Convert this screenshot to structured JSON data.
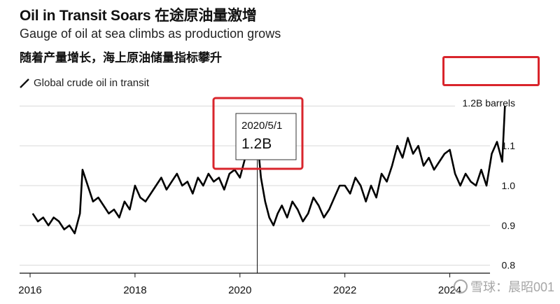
{
  "header": {
    "title": "Oil in Transit Soars 在途原油量激增",
    "subtitle": "Gauge of oil at sea climbs as production grows",
    "subtitle_zh": "随着产量增长，海上原油储量指标攀升"
  },
  "legend": {
    "series_label": "Global crude oil in transit"
  },
  "annotation": {
    "date": "2020/5/1",
    "value": "1.2B"
  },
  "watermark": {
    "text": "雪球：晨昭001"
  },
  "colors": {
    "line": "#000000",
    "highlight": "#d9252c",
    "grid": "#d9d9d9"
  },
  "chart_data": {
    "type": "line",
    "xlim": [
      2015.8,
      2025.3
    ],
    "ylim": [
      0.78,
      1.22
    ],
    "x_ticks": [
      2016,
      2018,
      2020,
      2022,
      2024
    ],
    "x_tick_labels": [
      "2016",
      "2018",
      "2020",
      "2022",
      "2024"
    ],
    "y_ticks": [
      0.8,
      0.9,
      1.0,
      1.1
    ],
    "y_tick_labels": [
      "0.8",
      "0.9",
      "1.0",
      "1.1"
    ],
    "top_label": "1.2B barrels",
    "grid": true,
    "series": [
      {
        "name": "Global crude oil in transit",
        "x": [
          2016.05,
          2016.15,
          2016.25,
          2016.35,
          2016.45,
          2016.55,
          2016.65,
          2016.75,
          2016.85,
          2016.95,
          2017.0,
          2017.1,
          2017.2,
          2017.3,
          2017.4,
          2017.5,
          2017.6,
          2017.7,
          2017.8,
          2017.9,
          2018.0,
          2018.1,
          2018.2,
          2018.3,
          2018.4,
          2018.5,
          2018.6,
          2018.7,
          2018.8,
          2018.9,
          2019.0,
          2019.1,
          2019.2,
          2019.3,
          2019.4,
          2019.5,
          2019.6,
          2019.7,
          2019.8,
          2019.9,
          2020.0,
          2020.08,
          2020.16,
          2020.24,
          2020.33,
          2020.4,
          2020.48,
          2020.56,
          2020.64,
          2020.72,
          2020.8,
          2020.9,
          2021.0,
          2021.1,
          2021.2,
          2021.3,
          2021.4,
          2021.5,
          2021.6,
          2021.7,
          2021.8,
          2021.9,
          2022.0,
          2022.1,
          2022.2,
          2022.3,
          2022.4,
          2022.5,
          2022.6,
          2022.7,
          2022.8,
          2022.9,
          2023.0,
          2023.1,
          2023.2,
          2023.3,
          2023.4,
          2023.5,
          2023.6,
          2023.7,
          2023.8,
          2023.9,
          2024.0,
          2024.1,
          2024.2,
          2024.3,
          2024.4,
          2024.5,
          2024.6,
          2024.7,
          2024.8,
          2024.9,
          2025.0,
          2025.05
        ],
        "values": [
          0.93,
          0.91,
          0.92,
          0.9,
          0.92,
          0.91,
          0.89,
          0.9,
          0.88,
          0.93,
          1.04,
          1.0,
          0.96,
          0.97,
          0.95,
          0.93,
          0.94,
          0.92,
          0.96,
          0.94,
          1.0,
          0.97,
          0.96,
          0.98,
          1.0,
          1.02,
          0.99,
          1.01,
          1.03,
          1.0,
          1.01,
          0.98,
          1.02,
          1.0,
          1.03,
          1.01,
          1.02,
          0.99,
          1.03,
          1.04,
          1.02,
          1.06,
          1.1,
          1.17,
          1.12,
          1.02,
          0.96,
          0.92,
          0.9,
          0.93,
          0.95,
          0.92,
          0.96,
          0.94,
          0.91,
          0.93,
          0.97,
          0.95,
          0.92,
          0.94,
          0.97,
          1.0,
          1.0,
          0.98,
          1.02,
          1.0,
          0.96,
          1.0,
          0.97,
          1.03,
          1.01,
          1.05,
          1.1,
          1.07,
          1.12,
          1.08,
          1.1,
          1.05,
          1.07,
          1.04,
          1.06,
          1.08,
          1.09,
          1.03,
          1.0,
          1.03,
          1.01,
          1.0,
          1.04,
          1.0,
          1.08,
          1.11,
          1.06,
          1.2
        ]
      }
    ]
  }
}
